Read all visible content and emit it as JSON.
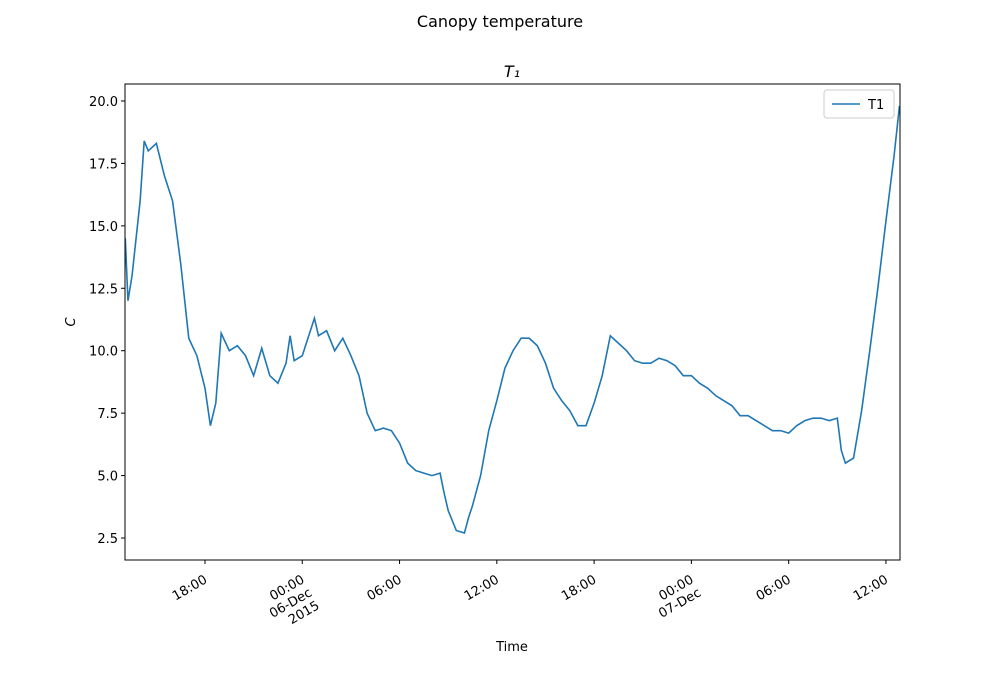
{
  "chart_data": {
    "type": "line",
    "suptitle": "Canopy temperature",
    "title": "T₁",
    "xlabel": "Time",
    "ylabel": "C",
    "x": [
      "2015-12-05 13:05",
      "2015-12-05 13:15",
      "2015-12-05 13:30",
      "2015-12-05 14:00",
      "2015-12-05 14:15",
      "2015-12-05 14:30",
      "2015-12-05 15:00",
      "2015-12-05 15:30",
      "2015-12-05 16:00",
      "2015-12-05 16:30",
      "2015-12-05 17:00",
      "2015-12-05 17:30",
      "2015-12-05 18:00",
      "2015-12-05 18:20",
      "2015-12-05 18:40",
      "2015-12-05 19:00",
      "2015-12-05 19:30",
      "2015-12-05 20:00",
      "2015-12-05 20:30",
      "2015-12-05 21:00",
      "2015-12-05 21:30",
      "2015-12-05 22:00",
      "2015-12-05 22:30",
      "2015-12-05 23:00",
      "2015-12-05 23:15",
      "2015-12-05 23:30",
      "2015-12-06 00:00",
      "2015-12-06 00:30",
      "2015-12-06 00:45",
      "2015-12-06 01:00",
      "2015-12-06 01:30",
      "2015-12-06 02:00",
      "2015-12-06 02:30",
      "2015-12-06 03:00",
      "2015-12-06 03:30",
      "2015-12-06 04:00",
      "2015-12-06 04:30",
      "2015-12-06 05:00",
      "2015-12-06 05:30",
      "2015-12-06 06:00",
      "2015-12-06 06:30",
      "2015-12-06 07:00",
      "2015-12-06 07:30",
      "2015-12-06 08:00",
      "2015-12-06 08:30",
      "2015-12-06 08:45",
      "2015-12-06 09:00",
      "2015-12-06 09:30",
      "2015-12-06 10:00",
      "2015-12-06 10:15",
      "2015-12-06 10:30",
      "2015-12-06 11:00",
      "2015-12-06 11:30",
      "2015-12-06 12:00",
      "2015-12-06 12:30",
      "2015-12-06 13:00",
      "2015-12-06 13:30",
      "2015-12-06 14:00",
      "2015-12-06 14:30",
      "2015-12-06 15:00",
      "2015-12-06 15:30",
      "2015-12-06 16:00",
      "2015-12-06 16:30",
      "2015-12-06 17:00",
      "2015-12-06 17:30",
      "2015-12-06 18:00",
      "2015-12-06 18:30",
      "2015-12-06 19:00",
      "2015-12-06 19:30",
      "2015-12-06 20:00",
      "2015-12-06 20:30",
      "2015-12-06 21:00",
      "2015-12-06 21:30",
      "2015-12-06 22:00",
      "2015-12-06 22:30",
      "2015-12-06 23:00",
      "2015-12-06 23:30",
      "2015-12-07 00:00",
      "2015-12-07 00:30",
      "2015-12-07 01:00",
      "2015-12-07 01:30",
      "2015-12-07 02:00",
      "2015-12-07 02:30",
      "2015-12-07 03:00",
      "2015-12-07 03:30",
      "2015-12-07 04:00",
      "2015-12-07 04:30",
      "2015-12-07 05:00",
      "2015-12-07 05:30",
      "2015-12-07 06:00",
      "2015-12-07 06:30",
      "2015-12-07 07:00",
      "2015-12-07 07:30",
      "2015-12-07 08:00",
      "2015-12-07 08:30",
      "2015-12-07 09:00",
      "2015-12-07 09:15",
      "2015-12-07 09:30",
      "2015-12-07 10:00",
      "2015-12-07 10:30",
      "2015-12-07 11:00",
      "2015-12-07 11:30",
      "2015-12-07 12:00",
      "2015-12-07 12:30",
      "2015-12-07 12:50"
    ],
    "series": [
      {
        "name": "T1",
        "color": "#1f77b4",
        "values": [
          14.5,
          12.0,
          13.0,
          16.0,
          18.4,
          18.0,
          18.3,
          17.0,
          16.0,
          13.5,
          10.5,
          9.8,
          8.5,
          7.0,
          7.9,
          10.7,
          10.0,
          10.2,
          9.8,
          9.0,
          10.1,
          9.0,
          8.7,
          9.5,
          10.6,
          9.6,
          9.8,
          10.8,
          11.3,
          10.6,
          10.8,
          10.0,
          10.5,
          9.8,
          9.0,
          7.5,
          6.8,
          6.9,
          6.8,
          6.3,
          5.5,
          5.2,
          5.1,
          5.0,
          5.1,
          4.3,
          3.6,
          2.8,
          2.7,
          3.3,
          3.8,
          5.0,
          6.8,
          8.0,
          9.3,
          10.0,
          10.5,
          10.5,
          10.2,
          9.5,
          8.5,
          8.0,
          7.6,
          7.0,
          7.0,
          7.9,
          9.0,
          10.6,
          10.3,
          10.0,
          9.6,
          9.5,
          9.5,
          9.7,
          9.6,
          9.4,
          9.0,
          9.0,
          8.7,
          8.5,
          8.2,
          8.0,
          7.8,
          7.4,
          7.4,
          7.2,
          7.0,
          6.8,
          6.8,
          6.7,
          7.0,
          7.2,
          7.3,
          7.3,
          7.2,
          7.3,
          6.0,
          5.5,
          5.7,
          7.6,
          10.0,
          12.5,
          15.2,
          17.8,
          19.8
        ]
      }
    ],
    "xlim": [
      "2015-12-05 13:04",
      "2015-12-07 12:52"
    ],
    "xticks": [
      {
        "value": "2015-12-05 18:00",
        "label": "18:00"
      },
      {
        "value": "2015-12-06 00:00",
        "label": "00:00\n06-Dec\n2015"
      },
      {
        "value": "2015-12-06 06:00",
        "label": "06:00"
      },
      {
        "value": "2015-12-06 12:00",
        "label": "12:00"
      },
      {
        "value": "2015-12-06 18:00",
        "label": "18:00"
      },
      {
        "value": "2015-12-07 00:00",
        "label": "00:00\n07-Dec"
      },
      {
        "value": "2015-12-07 06:00",
        "label": "06:00"
      },
      {
        "value": "2015-12-07 12:00",
        "label": "12:00"
      }
    ],
    "ylim": [
      1.62,
      20.68
    ],
    "yticks": [
      2.5,
      {
        "value": 5,
        "label": "5.0"
      },
      7.5,
      {
        "value": 10,
        "label": "10.0"
      },
      12.5,
      {
        "value": 15,
        "label": "15.0"
      },
      17.5,
      {
        "value": 20,
        "label": "20.0"
      }
    ],
    "legend": "upper right",
    "grid": false
  }
}
